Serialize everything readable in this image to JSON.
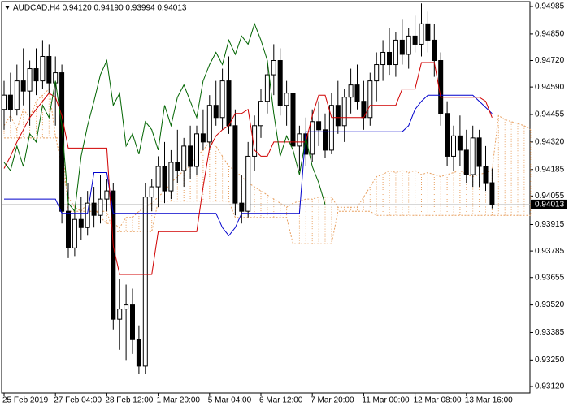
{
  "chart_data": {
    "type": "candlestick",
    "title": "AUDCAD,H4  0.94120 0.94190 0.93994 0.94013",
    "categories": [
      "25 Feb 2019",
      null,
      null,
      null,
      null,
      null,
      null,
      null,
      "27 Feb 04:00",
      null,
      null,
      null,
      null,
      null,
      null,
      null,
      "28 Feb 12:00",
      null,
      null,
      null,
      null,
      null,
      null,
      null,
      "1 Mar 20:00",
      null,
      null,
      null,
      null,
      null,
      null,
      null,
      "5 Mar 04:00",
      null,
      null,
      null,
      null,
      null,
      null,
      null,
      "6 Mar 12:00",
      null,
      null,
      null,
      null,
      null,
      null,
      null,
      "7 Mar 20:00",
      null,
      null,
      null,
      null,
      null,
      null,
      null,
      "11 Mar 00:00",
      null,
      null,
      null,
      null,
      null,
      null,
      null,
      "12 Mar 08:00",
      null,
      null,
      null,
      null,
      null,
      null,
      null,
      "13 Mar 16:00",
      null,
      null,
      null,
      null
    ],
    "open": [
      0.9448,
      0.9455,
      0.9448,
      0.9462,
      0.9457,
      0.9468,
      0.9462,
      0.9474,
      0.9461,
      0.9466,
      0.9398,
      0.938,
      0.9394,
      0.939,
      0.9402,
      0.9396,
      0.9404,
      0.9408,
      0.9345,
      0.935,
      0.9352,
      0.9335,
      0.9322,
      0.9405,
      0.941,
      0.942,
      0.9408,
      0.9422,
      0.9418,
      0.943,
      0.942,
      0.9436,
      0.9432,
      0.945,
      0.9444,
      0.9462,
      0.944,
      0.9402,
      0.9398,
      0.9425,
      0.944,
      0.9452,
      0.9465,
      0.9472,
      0.945,
      0.9456,
      0.943,
      0.9436,
      0.9426,
      0.9442,
      0.9438,
      0.9428,
      0.945,
      0.944,
      0.9454,
      0.946,
      0.9452,
      0.9444,
      0.9462,
      0.947,
      0.9476,
      0.947,
      0.9482,
      0.9475,
      0.9484,
      0.948,
      0.949,
      0.9482,
      0.9472,
      0.9446,
      0.9425,
      0.9435,
      0.9428,
      0.9416,
      0.9434,
      0.942,
      0.9412
    ],
    "high": [
      0.9462,
      0.9466,
      0.947,
      0.9478,
      0.9472,
      0.9478,
      0.9482,
      0.948,
      0.9474,
      0.947,
      0.9412,
      0.9398,
      0.9405,
      0.9408,
      0.941,
      0.9416,
      0.9414,
      0.9412,
      0.9365,
      0.9362,
      0.936,
      0.9342,
      0.9412,
      0.9414,
      0.9425,
      0.9432,
      0.9428,
      0.9438,
      0.9434,
      0.944,
      0.944,
      0.9448,
      0.9455,
      0.9462,
      0.9468,
      0.9474,
      0.9448,
      0.9416,
      0.9432,
      0.9445,
      0.9458,
      0.947,
      0.948,
      0.9478,
      0.9462,
      0.946,
      0.944,
      0.9444,
      0.9448,
      0.9452,
      0.9446,
      0.9456,
      0.9462,
      0.9458,
      0.9468,
      0.947,
      0.9462,
      0.9466,
      0.9476,
      0.9482,
      0.9488,
      0.9486,
      0.9492,
      0.9488,
      0.9494,
      0.95,
      0.9496,
      0.949,
      0.9476,
      0.9452,
      0.944,
      0.9445,
      0.9438,
      0.944,
      0.9438,
      0.943,
      0.9419
    ],
    "low": [
      0.9438,
      0.9442,
      0.9445,
      0.945,
      0.944,
      0.9455,
      0.9458,
      0.9456,
      0.944,
      0.9392,
      0.9375,
      0.9376,
      0.9384,
      0.9386,
      0.939,
      0.9392,
      0.9398,
      0.934,
      0.933,
      0.9325,
      0.9328,
      0.9318,
      0.9318,
      0.9398,
      0.94,
      0.9402,
      0.9404,
      0.9412,
      0.941,
      0.9414,
      0.9416,
      0.9428,
      0.9428,
      0.944,
      0.9438,
      0.9436,
      0.9396,
      0.9392,
      0.9395,
      0.9418,
      0.9434,
      0.9446,
      0.9455,
      0.9445,
      0.944,
      0.9425,
      0.9418,
      0.942,
      0.9422,
      0.943,
      0.9424,
      0.9426,
      0.9436,
      0.9432,
      0.9446,
      0.9448,
      0.9438,
      0.944,
      0.9452,
      0.9462,
      0.9465,
      0.9464,
      0.947,
      0.9468,
      0.9476,
      0.9474,
      0.9476,
      0.9464,
      0.944,
      0.942,
      0.9418,
      0.942,
      0.9412,
      0.941,
      0.941,
      0.9408,
      0.93994
    ],
    "close": [
      0.9455,
      0.9448,
      0.9462,
      0.9457,
      0.9468,
      0.9462,
      0.9474,
      0.9461,
      0.9466,
      0.9398,
      0.938,
      0.9394,
      0.939,
      0.9402,
      0.9396,
      0.9404,
      0.9408,
      0.9345,
      0.935,
      0.9352,
      0.9335,
      0.9322,
      0.9405,
      0.941,
      0.942,
      0.9408,
      0.9422,
      0.9418,
      0.943,
      0.942,
      0.9436,
      0.9432,
      0.945,
      0.9444,
      0.9462,
      0.944,
      0.9402,
      0.9398,
      0.9425,
      0.944,
      0.9452,
      0.9465,
      0.9472,
      0.945,
      0.9456,
      0.943,
      0.9436,
      0.9426,
      0.9442,
      0.9438,
      0.9428,
      0.945,
      0.944,
      0.9454,
      0.946,
      0.9452,
      0.9444,
      0.9462,
      0.947,
      0.9476,
      0.947,
      0.9482,
      0.9475,
      0.9484,
      0.948,
      0.949,
      0.9482,
      0.9472,
      0.9446,
      0.9425,
      0.9435,
      0.9428,
      0.9416,
      0.9434,
      0.942,
      0.9412,
      0.94013
    ],
    "tenkan": {
      "color": "#d00000",
      "values": [
        0.9419,
        0.9425,
        0.9432,
        0.9438,
        0.9444,
        0.9448,
        0.9452,
        0.9456,
        0.9454,
        0.9445,
        0.9429,
        0.9429,
        0.9429,
        0.9429,
        0.9429,
        0.9429,
        0.9429,
        0.9381,
        0.9367,
        0.9367,
        0.9367,
        0.9367,
        0.9367,
        0.9367,
        0.9388,
        0.9388,
        0.9388,
        0.9388,
        0.9388,
        0.9388,
        0.9388,
        0.941,
        0.9429,
        0.9435,
        0.9438,
        0.944,
        0.9446,
        0.9446,
        0.9448,
        0.9428,
        0.9425,
        0.9425,
        0.9432,
        0.9432,
        0.9432,
        0.9432,
        0.9432,
        0.9432,
        0.9445,
        0.9455,
        0.9455,
        0.9444,
        0.9444,
        0.9444,
        0.9444,
        0.9444,
        0.9444,
        0.945,
        0.945,
        0.945,
        0.945,
        0.945,
        0.9458,
        0.9458,
        0.9458,
        0.9471,
        0.9471,
        0.9471,
        0.9454,
        0.9454,
        0.9454,
        0.9454,
        0.9454,
        0.9454,
        0.9454,
        0.9452,
        0.9444
      ]
    },
    "kijun": {
      "color": "#0000cc",
      "values": [
        0.9404,
        0.9404,
        0.9404,
        0.9404,
        0.9404,
        0.9404,
        0.9404,
        0.9404,
        0.9404,
        0.9397,
        0.9397,
        0.9397,
        0.9397,
        0.9397,
        0.9417,
        0.9417,
        0.9417,
        0.9397,
        0.9397,
        0.9397,
        0.9397,
        0.9397,
        0.9397,
        0.9397,
        0.9397,
        0.9397,
        0.9397,
        0.9397,
        0.9397,
        0.9397,
        0.9397,
        0.9397,
        0.9397,
        0.9397,
        0.939,
        0.9386,
        0.939,
        0.9397,
        0.9397,
        0.9397,
        0.9397,
        0.9397,
        0.9397,
        0.9397,
        0.9397,
        0.9397,
        0.9397,
        0.9437,
        0.9437,
        0.9437,
        0.9437,
        0.9437,
        0.9437,
        0.9437,
        0.9437,
        0.9437,
        0.9437,
        0.9437,
        0.9437,
        0.9437,
        0.9437,
        0.9437,
        0.9437,
        0.944,
        0.9448,
        0.9452,
        0.9455,
        0.9455,
        0.9455,
        0.9455,
        0.9455,
        0.9455,
        0.9455,
        0.9455,
        0.9452,
        0.9449,
        0.9446
      ]
    },
    "chikou": {
      "color": "#006400",
      "values": [
        0.9422,
        0.9418,
        0.943,
        0.942,
        0.9436,
        0.9432,
        0.945,
        0.9444,
        0.9462,
        0.944,
        0.9402,
        0.9398,
        0.9425,
        0.944,
        0.9452,
        0.9465,
        0.9472,
        0.945,
        0.9456,
        0.943,
        0.9436,
        0.9426,
        0.9442,
        0.9438,
        0.9428,
        0.945,
        0.944,
        0.9454,
        0.946,
        0.9452,
        0.9444,
        0.9462,
        0.947,
        0.9476,
        0.947,
        0.9482,
        0.9475,
        0.9484,
        0.948,
        0.949,
        0.9482,
        0.9472,
        0.9446,
        0.9425,
        0.9435,
        0.9428,
        0.9416,
        0.9434,
        0.942,
        0.9412,
        0.94013
      ]
    },
    "span_a": {
      "color": "#e8a060",
      "values": [
        0.944,
        0.9445,
        0.9438,
        0.9448,
        0.9444,
        0.9452,
        0.9455,
        0.9458,
        0.9435,
        0.942,
        0.9405,
        0.94,
        0.9398,
        0.9402,
        0.94,
        0.9395,
        0.9392,
        0.9392,
        0.939,
        0.9395,
        0.9395,
        0.9398,
        0.94,
        0.9402,
        0.9405,
        0.9408,
        0.9412,
        0.9415,
        0.9418,
        0.942,
        0.9425,
        0.9428,
        0.9432,
        0.943,
        0.9425,
        0.942,
        0.9418,
        0.9415,
        0.9412,
        0.941,
        0.9408,
        0.9406,
        0.9404,
        0.9402,
        0.94,
        0.9402,
        0.9403,
        0.9404,
        0.9404,
        0.9405,
        0.9405,
        0.9405,
        0.94,
        0.94,
        0.94,
        0.94,
        0.9405,
        0.941,
        0.9415,
        0.9416,
        0.9418,
        0.9417,
        0.9418,
        0.9417,
        0.9418,
        0.9416,
        0.9417,
        0.9416,
        0.9415,
        0.9416,
        0.9417,
        0.9418,
        0.9416,
        0.9415,
        0.9416,
        0.9417,
        0.9418,
        0.9445,
        0.9443,
        0.9442,
        0.9441,
        0.944,
        0.9438
      ]
    },
    "span_b": {
      "color": "#e8a060",
      "values": [
        0.9434,
        0.9434,
        0.9434,
        0.9434,
        0.9434,
        0.9434,
        0.9434,
        0.9434,
        0.9434,
        0.9434,
        0.9398,
        0.9398,
        0.9398,
        0.9398,
        0.9398,
        0.9398,
        0.9398,
        0.9388,
        0.9388,
        0.9388,
        0.9388,
        0.9388,
        0.9388,
        0.9388,
        0.9403,
        0.9403,
        0.9403,
        0.9403,
        0.9403,
        0.9403,
        0.9403,
        0.9403,
        0.9403,
        0.9403,
        0.9403,
        0.9403,
        0.9395,
        0.9395,
        0.9395,
        0.9395,
        0.9395,
        0.9395,
        0.9395,
        0.9395,
        0.9395,
        0.9382,
        0.9382,
        0.9382,
        0.9382,
        0.9382,
        0.9382,
        0.9382,
        0.9398,
        0.9398,
        0.9398,
        0.9398,
        0.9398,
        0.9398,
        0.9396,
        0.9396,
        0.9396,
        0.9396,
        0.9396,
        0.9396,
        0.9396,
        0.9396,
        0.9396,
        0.9396,
        0.9396,
        0.9396,
        0.9396,
        0.9396,
        0.9396,
        0.9396,
        0.9396,
        0.9396,
        0.9396,
        0.9396,
        0.9396,
        0.9396,
        0.9396,
        0.9396,
        0.9396
      ]
    },
    "last_price": 0.94013,
    "ylim": [
      0.93088,
      0.95009
    ],
    "yticks": [
      {
        "value": 0.94985,
        "label": "0.94985"
      },
      {
        "value": 0.9485,
        "label": "0.94850"
      },
      {
        "value": 0.9472,
        "label": "0.94720"
      },
      {
        "value": 0.9459,
        "label": "0.94590"
      },
      {
        "value": 0.94455,
        "label": "0.94455"
      },
      {
        "value": 0.9432,
        "label": "0.94320"
      },
      {
        "value": 0.94185,
        "label": "0.94185"
      },
      {
        "value": 0.94055,
        "label": "0.94055"
      },
      {
        "value": 0.93915,
        "label": "0.93915"
      },
      {
        "value": 0.93785,
        "label": "0.93785"
      },
      {
        "value": 0.93655,
        "label": "0.93655"
      },
      {
        "value": 0.9352,
        "label": "0.93520"
      },
      {
        "value": 0.93385,
        "label": "0.93385"
      },
      {
        "value": 0.9325,
        "label": "0.93250"
      },
      {
        "value": 0.9312,
        "label": "0.93120"
      }
    ]
  }
}
